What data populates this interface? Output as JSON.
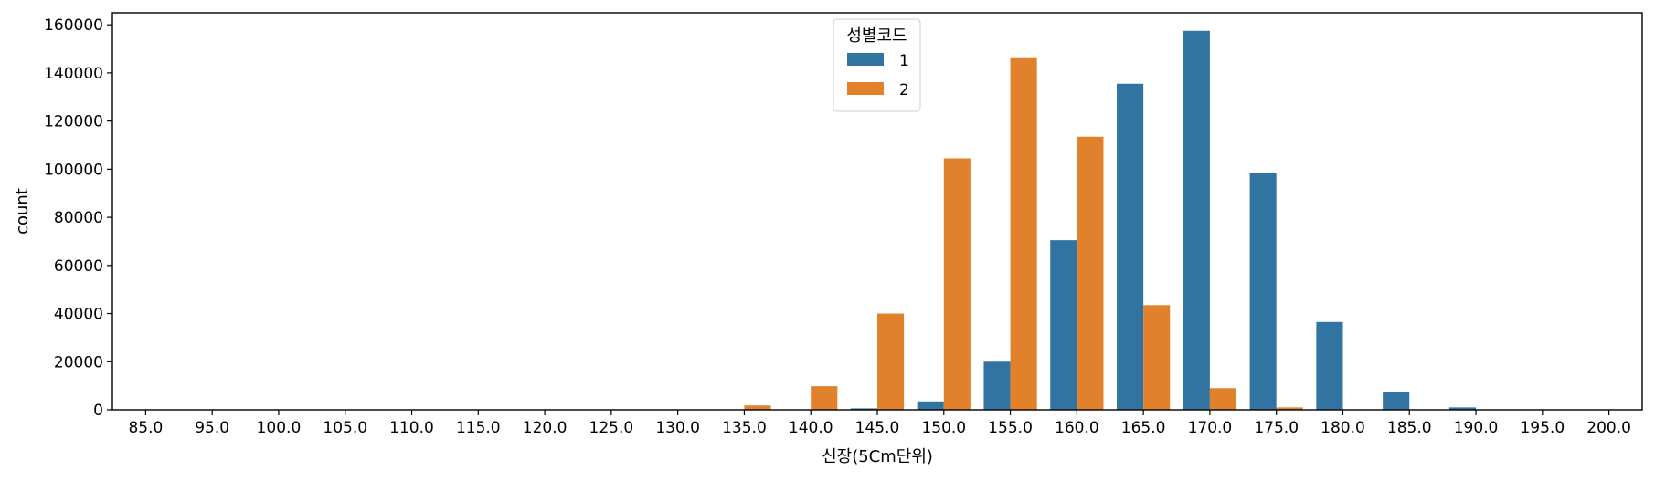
{
  "chart_data": {
    "type": "bar",
    "xlabel": "신장(5Cm단위)",
    "ylabel": "count",
    "ylim": [
      0,
      165000
    ],
    "yticks": [
      0,
      20000,
      40000,
      60000,
      80000,
      100000,
      120000,
      140000,
      160000
    ],
    "categories": [
      "85.0",
      "95.0",
      "100.0",
      "105.0",
      "110.0",
      "115.0",
      "120.0",
      "125.0",
      "130.0",
      "135.0",
      "140.0",
      "145.0",
      "150.0",
      "155.0",
      "160.0",
      "165.0",
      "170.0",
      "175.0",
      "180.0",
      "185.0",
      "190.0",
      "195.0",
      "200.0"
    ],
    "legend": {
      "title": "성별코드",
      "position": "top-center"
    },
    "grid": false,
    "series": [
      {
        "name": "1",
        "color": "#3274a1",
        "values": [
          0,
          0,
          0,
          0,
          0,
          0,
          0,
          0,
          0,
          0,
          100,
          600,
          3500,
          20000,
          70500,
          135500,
          157500,
          98500,
          36500,
          7500,
          1000,
          100,
          0
        ]
      },
      {
        "name": "2",
        "color": "#e1812c",
        "values": [
          0,
          0,
          0,
          0,
          0,
          0,
          0,
          0,
          0,
          1800,
          9800,
          40000,
          104500,
          146500,
          113500,
          43500,
          9000,
          1000,
          100,
          0,
          0,
          0,
          0
        ]
      }
    ]
  }
}
